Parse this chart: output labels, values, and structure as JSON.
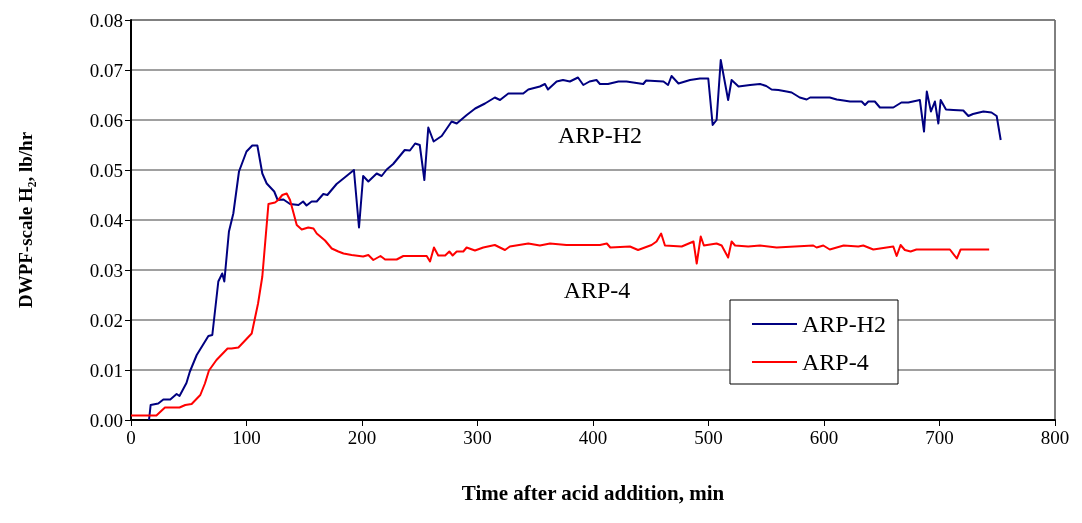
{
  "chart_data": {
    "type": "line",
    "xlabel": "Time after acid addition, min",
    "ylabel": "DWPF-scale H₂, lb/hr",
    "xlim": [
      0,
      800
    ],
    "xticks": [
      0,
      100,
      200,
      300,
      400,
      500,
      600,
      700,
      800
    ],
    "ylim": [
      0,
      0.08
    ],
    "yticks": [
      {
        "value": 0,
        "label": "0.00"
      },
      {
        "value": 0.01,
        "label": "0.01"
      },
      {
        "value": 0.02,
        "label": "0.02"
      },
      {
        "value": 0.03,
        "label": "0.03"
      },
      {
        "value": 0.04,
        "label": "0.04"
      },
      {
        "value": 0.05,
        "label": "0.05"
      },
      {
        "value": 0.06,
        "label": "0.06"
      },
      {
        "value": 0.07,
        "label": "0.07"
      },
      {
        "value": 0.08,
        "label": "0.08"
      }
    ],
    "grid": "y",
    "legend": "bottom right",
    "marker": "none",
    "line_style": "solid",
    "annotations": [
      "ARP-H2",
      "ARP-4"
    ],
    "series": [
      {
        "name": "ARP-H2",
        "color": "#000080",
        "x": [
          15.6,
          17,
          23.6,
          28,
          34,
          39.5,
          42,
          48,
          51,
          56.9,
          67,
          70.4,
          75.6,
          79,
          80.8,
          84.8,
          88.6,
          93.5,
          100,
          105,
          109.4,
          113.7,
          117.5,
          124,
          127,
          132,
          137.7,
          145,
          149,
          152,
          156.4,
          160.8,
          166.5,
          170,
          178,
          185,
          193,
          197.4,
          201,
          205.5,
          212.7,
          217,
          221.4,
          227,
          237,
          241.5,
          246,
          250,
          254,
          257.4,
          262,
          269,
          277.6,
          282,
          290.7,
          298,
          306.5,
          315,
          319.5,
          326.7,
          339.6,
          344,
          354,
          358.4,
          361,
          368.5,
          374,
          380,
          387,
          391.6,
          397,
          403,
          406,
          413,
          422,
          429,
          443.5,
          446,
          461,
          465,
          468,
          474,
          484,
          492.6,
          499.8,
          503.6,
          507,
          510.6,
          517,
          520,
          526,
          536,
          544.6,
          550,
          554.6,
          560.5,
          567.6,
          572,
          579,
          585,
          588,
          605,
          611,
          617,
          622.5,
          632.6,
          635.5,
          638.4,
          644,
          648.4,
          660,
          667,
          673,
          683,
          686.6,
          689,
          692.6,
          696,
          699,
          701,
          705.6,
          712,
          720.6,
          725,
          729,
          738,
          745,
          749.5,
          753
        ],
        "values": [
          0,
          0.003,
          0.0033,
          0.0041,
          0.0041,
          0.0052,
          0.0048,
          0.0074,
          0.0097,
          0.013,
          0.0168,
          0.017,
          0.0277,
          0.0293,
          0.0277,
          0.0377,
          0.0413,
          0.0497,
          0.0537,
          0.0549,
          0.0549,
          0.0493,
          0.0473,
          0.0457,
          0.044,
          0.0441,
          0.0432,
          0.043,
          0.0437,
          0.0429,
          0.0437,
          0.0437,
          0.0452,
          0.045,
          0.0472,
          0.0485,
          0.05,
          0.0385,
          0.0488,
          0.0477,
          0.0493,
          0.0488,
          0.0501,
          0.0512,
          0.054,
          0.0539,
          0.0553,
          0.055,
          0.048,
          0.0585,
          0.0557,
          0.0568,
          0.0597,
          0.0593,
          0.061,
          0.0623,
          0.0633,
          0.0645,
          0.064,
          0.0653,
          0.0653,
          0.0661,
          0.0667,
          0.0672,
          0.0661,
          0.0677,
          0.068,
          0.0677,
          0.0685,
          0.067,
          0.0677,
          0.068,
          0.0672,
          0.0672,
          0.0677,
          0.0677,
          0.0672,
          0.0679,
          0.0677,
          0.067,
          0.0688,
          0.0673,
          0.068,
          0.0683,
          0.0683,
          0.059,
          0.06,
          0.072,
          0.064,
          0.068,
          0.0667,
          0.067,
          0.0672,
          0.0668,
          0.0661,
          0.066,
          0.0657,
          0.0655,
          0.0645,
          0.0641,
          0.0645,
          0.0645,
          0.0641,
          0.0639,
          0.0637,
          0.0637,
          0.063,
          0.0637,
          0.0637,
          0.0625,
          0.0625,
          0.0635,
          0.0635,
          0.064,
          0.0577,
          0.0657,
          0.0617,
          0.0637,
          0.0593,
          0.064,
          0.0621,
          0.062,
          0.0619,
          0.0608,
          0.0612,
          0.0617,
          0.0615,
          0.0608,
          0.056
        ]
      },
      {
        "name": "ARP-4",
        "color": "#ff0000",
        "x": [
          0,
          22,
          29.4,
          42,
          47,
          52.5,
          60,
          64,
          67.5,
          74,
          83.6,
          87,
          93,
          104.5,
          110,
          113.7,
          119,
          124.7,
          127.5,
          131,
          134.8,
          137.7,
          143.5,
          147.8,
          153.5,
          158,
          160.8,
          168,
          173.8,
          179.5,
          184,
          191,
          201,
          205.5,
          209.8,
          216,
          220,
          230,
          235.8,
          244.3,
          256,
          258.9,
          262.3,
          266,
          272,
          275.6,
          278.5,
          282,
          287.7,
          290.6,
          297.8,
          305,
          315,
          323.8,
          328,
          344,
          354,
          362.8,
          377,
          406,
          412,
          415,
          432,
          439,
          450.7,
          455,
          459,
          462.3,
          476.8,
          487,
          489.8,
          493.3,
          496,
          507,
          511.4,
          517,
          520,
          523,
          534.4,
          544.6,
          559,
          590.7,
          593.6,
          599.4,
          605,
          617,
          629.7,
          634,
          642.7,
          660,
          662.9,
          666.3,
          670,
          675,
          680,
          709,
          715,
          718.3,
          743
        ],
        "values": [
          0.0009,
          0.0009,
          0.0025,
          0.0025,
          0.003,
          0.0032,
          0.005,
          0.0073,
          0.0099,
          0.012,
          0.0143,
          0.0143,
          0.0145,
          0.0173,
          0.0233,
          0.0287,
          0.0432,
          0.0435,
          0.044,
          0.045,
          0.0453,
          0.044,
          0.039,
          0.0381,
          0.0385,
          0.0383,
          0.0373,
          0.0359,
          0.0343,
          0.0337,
          0.0333,
          0.033,
          0.0327,
          0.033,
          0.032,
          0.0328,
          0.0321,
          0.0321,
          0.0328,
          0.0328,
          0.0328,
          0.0317,
          0.0345,
          0.0329,
          0.0329,
          0.0337,
          0.0329,
          0.0337,
          0.0337,
          0.0345,
          0.0339,
          0.0345,
          0.035,
          0.034,
          0.0347,
          0.0353,
          0.0349,
          0.0353,
          0.035,
          0.035,
          0.0353,
          0.0345,
          0.0347,
          0.034,
          0.035,
          0.0357,
          0.0373,
          0.0349,
          0.0347,
          0.0357,
          0.0313,
          0.0367,
          0.0349,
          0.0353,
          0.0349,
          0.0325,
          0.0357,
          0.0349,
          0.0347,
          0.0349,
          0.0345,
          0.0349,
          0.0345,
          0.0349,
          0.0341,
          0.0349,
          0.0347,
          0.0349,
          0.0341,
          0.0347,
          0.0328,
          0.035,
          0.034,
          0.0337,
          0.0341,
          0.0341,
          0.0323,
          0.0341,
          0.0341
        ]
      }
    ]
  }
}
